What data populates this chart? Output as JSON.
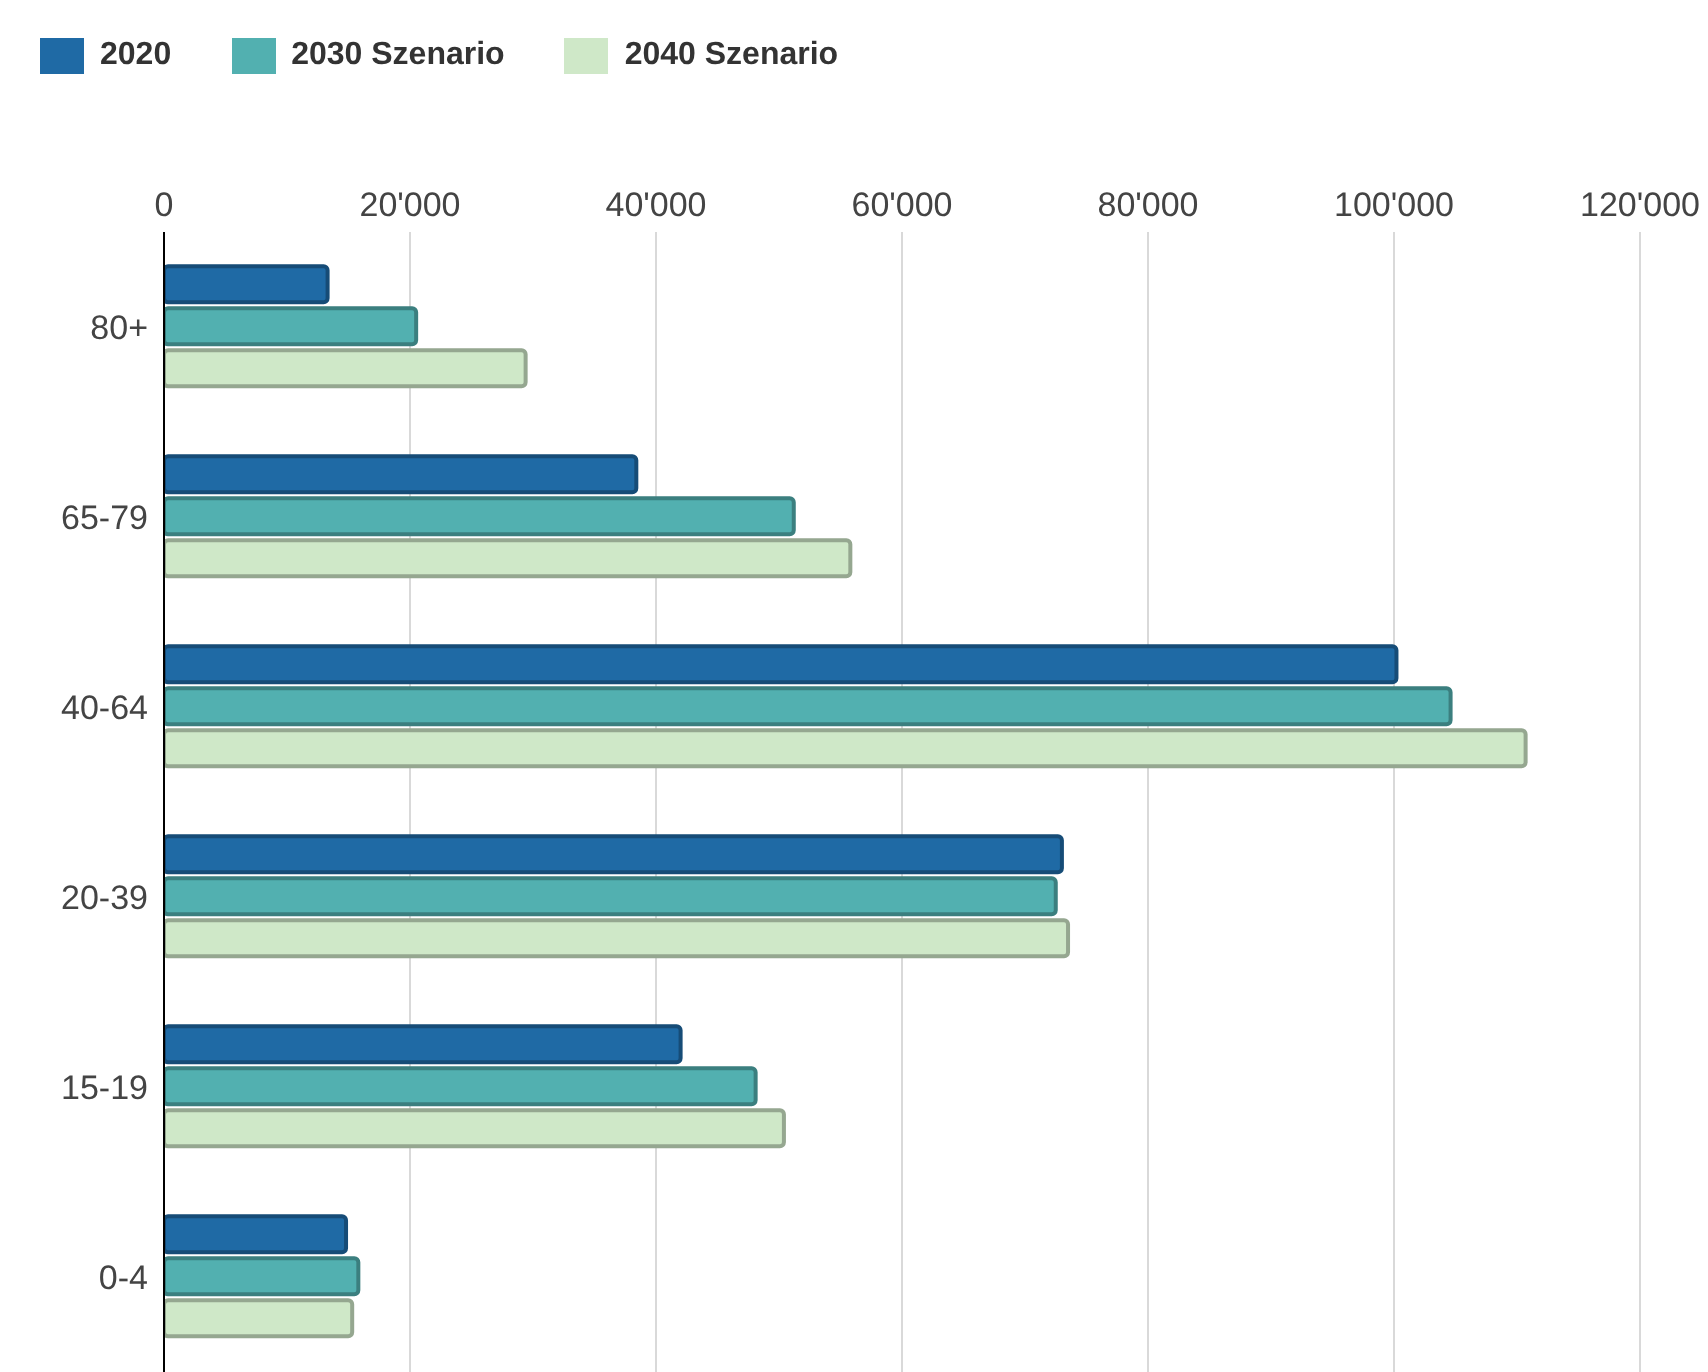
{
  "chart_data": {
    "type": "bar",
    "orientation": "horizontal",
    "categories": [
      "80+",
      "65-79",
      "40-64",
      "20-39",
      "15-19",
      "0-4"
    ],
    "series": [
      {
        "name": "2020",
        "color": "#1f6aa5",
        "values": [
          13300,
          38400,
          100200,
          73000,
          42000,
          14800
        ]
      },
      {
        "name": "2030 Szenario",
        "color": "#52b0b0",
        "values": [
          20500,
          51200,
          104600,
          72500,
          48100,
          15800
        ]
      },
      {
        "name": "2040 Szenario",
        "color": "#cfe8c8",
        "values": [
          29400,
          55800,
          110700,
          73500,
          50400,
          15300
        ]
      }
    ],
    "xlim": [
      0,
      120000
    ],
    "xticks": [
      {
        "value": 0,
        "label": "0"
      },
      {
        "value": 20000,
        "label": "20'000"
      },
      {
        "value": 40000,
        "label": "40'000"
      },
      {
        "value": 60000,
        "label": "60'000"
      },
      {
        "value": 80000,
        "label": "80'000"
      },
      {
        "value": 100000,
        "label": "100'000"
      },
      {
        "value": 120000,
        "label": "120'000"
      }
    ],
    "grid": "x",
    "legend": "top left"
  }
}
